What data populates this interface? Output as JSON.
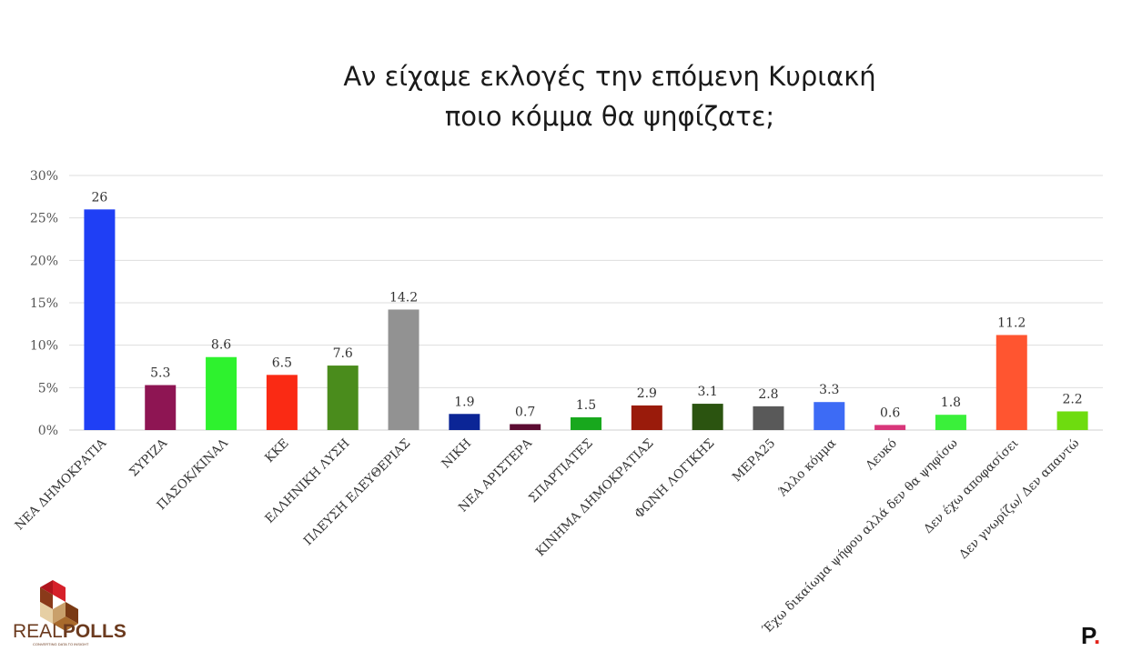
{
  "title_line1": "Αν είχαμε εκλογές την επόμενη Κυριακή",
  "title_line2": "ποιο κόμμα θα ψηφίζατε;",
  "chart_data": {
    "type": "bar",
    "categories": [
      "ΝΕΑ ΔΗΜΟΚΡΑΤΙΑ",
      "ΣΥΡΙΖΑ",
      "ΠΑΣΟΚ/ΚΙΝΑΛ",
      "ΚΚΕ",
      "ΕΛΛΗΝΙΚΗ ΛΥΣΗ",
      "ΠΛΕΥΣΗ ΕΛΕΥΘΕΡΙΑΣ",
      "ΝΙΚΗ",
      "ΝΕΑ ΑΡΙΣΤΕΡΑ",
      "ΣΠΑΡΤΙΑΤΕΣ",
      "ΚΙΝΗΜΑ ΔΗΜΟΚΡΑΤΙΑΣ",
      "ΦΩΝΗ ΛΟΓΙΚΗΣ",
      "ΜΕΡΑ25",
      "Άλλο κόμμα",
      "Λευκό",
      "Έχω δικαίωμα ψήφου αλλά δεν θα ψηφίσω",
      "Δεν έχω αποφασίσει",
      "Δεν γνωρίζω/ Δεν απαντώ"
    ],
    "values": [
      26,
      5.3,
      8.6,
      6.5,
      7.6,
      14.2,
      1.9,
      0.7,
      1.5,
      2.9,
      3.1,
      2.8,
      3.3,
      0.6,
      1.8,
      11.2,
      2.2
    ],
    "value_labels": [
      "26",
      "5.3",
      "8.6",
      "6.5",
      "7.6",
      "14.2",
      "1.9",
      "0.7",
      "1.5",
      "2.9",
      "3.1",
      "2.8",
      "3.3",
      "0.6",
      "1.8",
      "11.2",
      "2.2"
    ],
    "colors": [
      "#1f3ff5",
      "#8e1553",
      "#2ef22e",
      "#fa2a14",
      "#4a8c1c",
      "#929292",
      "#0b2596",
      "#5c0c32",
      "#18a81d",
      "#9a1b0b",
      "#2b5410",
      "#595959",
      "#3d6bf5",
      "#d8367a",
      "#3af03a",
      "#ff5530",
      "#6edc0f"
    ],
    "ylim": [
      0,
      30
    ],
    "yticks": [
      "0%",
      "5%",
      "10%",
      "15%",
      "20%",
      "25%",
      "30%"
    ],
    "grid": true,
    "xlabel": "",
    "ylabel": ""
  },
  "logos": {
    "left_text_a": "REAL",
    "left_text_b": "POLLS",
    "left_tagline": "CONVERTING DATA TO INSIGHT",
    "right_letter": "P",
    "right_dot": "."
  }
}
